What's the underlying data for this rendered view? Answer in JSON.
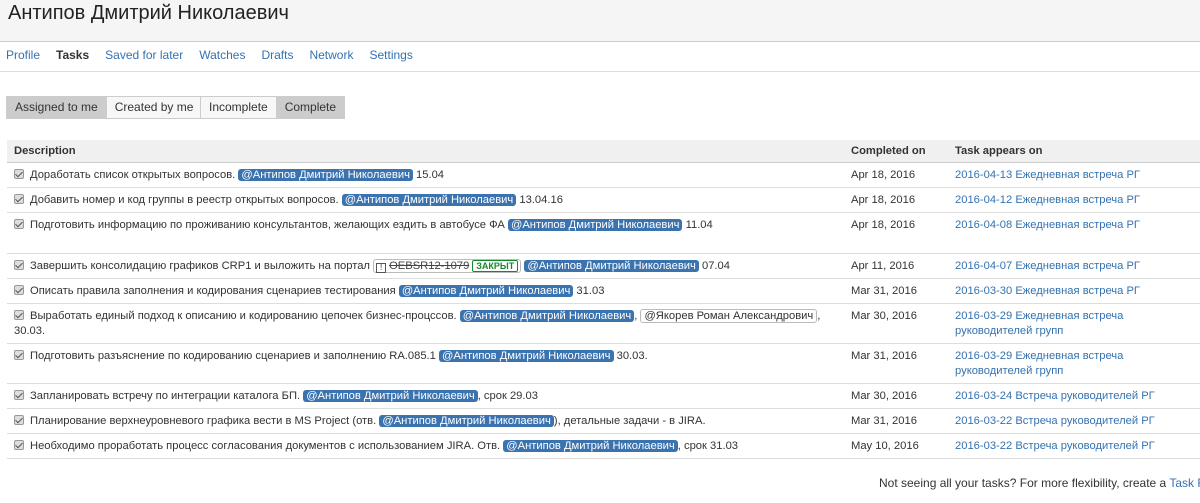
{
  "header": {
    "title": "Антипов Дмитрий Николаевич"
  },
  "nav": [
    "Profile",
    "Tasks",
    "Saved for later",
    "Watches",
    "Drafts",
    "Network",
    "Settings"
  ],
  "filters": {
    "assigned_to_me": "Assigned to me",
    "created_by_me": "Created by me",
    "incomplete": "Incomplete",
    "complete": "Complete"
  },
  "columns": {
    "description": "Description",
    "completed_on": "Completed on",
    "task_appears_on": "Task appears on"
  },
  "rows": [
    {
      "pre": "Доработать список открытых вопросов. ",
      "mention": "@Антипов Дмитрий Николаевич",
      "post": " 15.04",
      "date": "Apr 18, 2016",
      "page": "2016-04-13 Ежедневная встреча РГ"
    },
    {
      "pre": "Добавить номер и код группы в реестр открытых вопросов. ",
      "mention": "@Антипов Дмитрий Николаевич",
      "post": " 13.04.16",
      "date": "Apr 18, 2016",
      "page": "2016-04-12 Ежедневная встреча РГ"
    },
    {
      "pre": "Подготовить информацию по проживанию консультантов, желающих ездить в автобусе ФА ",
      "mention": "@Антипов Дмитрий Николаевич",
      "post": " 11.04",
      "date": "Apr 18, 2016",
      "page": "2016-04-08 Ежедневная встреча РГ"
    },
    {
      "pre": "Завершить консолидацию графиков CRP1 и выложить на портал ",
      "issue_key": "OEBSR12-1079",
      "issue_status": "ЗАКРЫТ",
      "mention": "@Антипов Дмитрий Николаевич",
      "post": " 07.04",
      "date": "Apr 11, 2016",
      "page": "2016-04-07 Ежедневная встреча РГ"
    },
    {
      "pre": "Описать правила заполнения и кодирования сценариев тестирования ",
      "mention": "@Антипов Дмитрий Николаевич",
      "post": " 31.03",
      "date": "Mar 31, 2016",
      "page": "2016-03-30 Ежедневная встреча РГ"
    },
    {
      "pre": "Выработать единый подход к описанию и кодированию цепочек бизнес-процссов. ",
      "mention": "@Антипов Дмитрий Николаевич",
      "mid": ", ",
      "mention2": "@Якорев Роман Александрович",
      "post": ", 30.03.",
      "date": "Mar 30, 2016",
      "page": "2016-03-29 Ежедневная встреча руководителей групп"
    },
    {
      "pre": "Подготовить разъяснение по кодированию сценариев и заполнению RA.085.1 ",
      "mention": "@Антипов Дмитрий Николаевич",
      "post": " 30.03.",
      "date": "Mar 31, 2016",
      "page": "2016-03-29 Ежедневная встреча руководителей групп"
    },
    {
      "pre": "Запланировать встречу по интеграции каталога БП. ",
      "mention": "@Антипов Дмитрий Николаевич",
      "post": ", срок 29.03",
      "date": "Mar 30, 2016",
      "page": "2016-03-24 Встреча руководителей РГ"
    },
    {
      "pre": "Планирование верхнеуровневого графика вести в MS Project (отв. ",
      "mention": "@Антипов Дмитрий Николаевич",
      "post": "), детальные задачи - в JIRA.",
      "date": "Mar 31, 2016",
      "page": "2016-03-22 Встреча руководителей РГ"
    },
    {
      "pre": "Необходимо проработать процесс согласования документов с использованием JIRA.  Отв. ",
      "mention": "@Антипов Дмитрий Николаевич",
      "post": ", срок 31.03",
      "date": "May 10, 2016",
      "page": "2016-03-22 Встреча руководителей РГ"
    }
  ],
  "footer": {
    "text": "Not seeing all your tasks? For more flexibility, create a ",
    "link": "Task Repo"
  }
}
